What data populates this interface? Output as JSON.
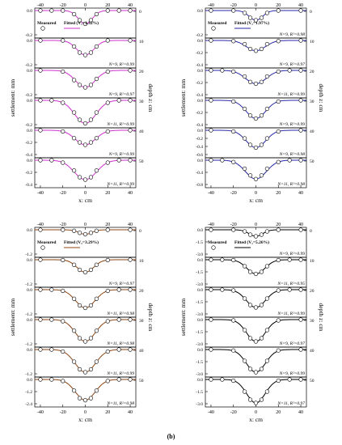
{
  "figure": {
    "caption": "(b)",
    "legend_measured": "Measured",
    "legend_fitted": "Fitted",
    "ylabel_left": "settlement: mm",
    "ylabel_right": "depth z: cm",
    "xlabel": "x: cm"
  },
  "chart_data": [
    {
      "type": "line",
      "id": "top-left",
      "color": "#cc33cc",
      "fit_label": "(V₁=1.32%)",
      "xlim": [
        -45,
        45
      ],
      "xticks": [
        -40,
        -20,
        0,
        20,
        40
      ],
      "xlabel": "x: cm",
      "ylabel": "settlement: mm",
      "depth_label": "depth z: cm",
      "panels": [
        {
          "depth": "0",
          "ylim": [
            -0.2,
            0.0
          ],
          "yticks": [
            "0.0",
            "-0.2"
          ],
          "stats": "",
          "x": [
            -40,
            -30,
            -20,
            -10,
            -5,
            0,
            5,
            10,
            20,
            30,
            40
          ],
          "y": [
            0,
            0,
            0,
            -0.03,
            -0.08,
            -0.11,
            -0.08,
            -0.03,
            0,
            0,
            0
          ]
        },
        {
          "depth": "10",
          "ylim": [
            -0.2,
            0.0
          ],
          "yticks": [
            "0.0",
            "-0.2"
          ],
          "stats": "N=9, R²=0.99",
          "x": [
            -40,
            -20,
            -10,
            -5,
            0,
            5,
            10,
            20,
            40
          ],
          "y": [
            0,
            0,
            -0.05,
            -0.1,
            -0.12,
            -0.1,
            -0.05,
            0,
            0
          ]
        },
        {
          "depth": "20",
          "ylim": [
            -0.2,
            0.0
          ],
          "yticks": [
            "0.0",
            "-0.2"
          ],
          "stats": "N=9, R²=0.97",
          "x": [
            -40,
            -20,
            -10,
            -5,
            0,
            5,
            10,
            20,
            40
          ],
          "y": [
            0,
            -0.01,
            -0.08,
            -0.12,
            -0.14,
            -0.12,
            -0.07,
            -0.01,
            0
          ]
        },
        {
          "depth": "30",
          "ylim": [
            -0.2,
            0.0
          ],
          "yticks": [
            "0.0",
            "-0.2"
          ],
          "stats": "N=11, R²=0.99",
          "x": [
            -40,
            -30,
            -20,
            -10,
            -5,
            0,
            5,
            10,
            20,
            30,
            40
          ],
          "y": [
            0,
            0,
            -0.02,
            -0.1,
            -0.16,
            -0.19,
            -0.16,
            -0.1,
            -0.02,
            0,
            0
          ]
        },
        {
          "depth": "40",
          "ylim": [
            -0.4,
            0.0
          ],
          "yticks": [
            "0.0",
            "-0.2",
            "-0.4"
          ],
          "stats": "N=9, R²=0.99",
          "x": [
            -40,
            -20,
            -10,
            -5,
            0,
            5,
            10,
            20,
            40
          ],
          "y": [
            0,
            -0.02,
            -0.13,
            -0.2,
            -0.24,
            -0.2,
            -0.13,
            -0.02,
            0
          ]
        },
        {
          "depth": "50",
          "ylim": [
            -0.4,
            0.0
          ],
          "yticks": [
            "0.0",
            "-0.2",
            "-0.4"
          ],
          "stats": "N=11, R²=0.99",
          "x": [
            -40,
            -30,
            -20,
            -10,
            -5,
            0,
            5,
            10,
            20,
            30,
            40
          ],
          "y": [
            0,
            0,
            -0.04,
            -0.17,
            -0.28,
            -0.32,
            -0.28,
            -0.17,
            -0.04,
            0,
            0
          ]
        }
      ]
    },
    {
      "type": "line",
      "id": "top-right",
      "color": "#2a2aa8",
      "fit_label": "(V₁=1.97%)",
      "xlim": [
        -45,
        45
      ],
      "xticks": [
        -40,
        -20,
        0,
        20,
        40
      ],
      "xlabel": "x: cm",
      "ylabel": "settlement: mm",
      "depth_label": "depth z: cm",
      "panels": [
        {
          "depth": "0",
          "ylim": [
            -0.2,
            0.0
          ],
          "yticks": [
            "0.0",
            "-0.2"
          ],
          "stats": "N=9, R²=0.98",
          "x": [
            -40,
            -20,
            -10,
            -5,
            0,
            5,
            10,
            20,
            40
          ],
          "y": [
            0,
            0,
            -0.02,
            -0.06,
            -0.08,
            -0.06,
            -0.02,
            0,
            0
          ]
        },
        {
          "depth": "10",
          "ylim": [
            -0.4,
            0.0
          ],
          "yticks": [
            "0.0",
            "-0.2",
            "-0.4"
          ],
          "stats": "N=9, R²=0.97",
          "x": [
            -40,
            -20,
            -10,
            -5,
            0,
            5,
            10,
            20,
            40
          ],
          "y": [
            0,
            -0.01,
            -0.06,
            -0.14,
            -0.17,
            -0.14,
            -0.06,
            -0.01,
            0
          ]
        },
        {
          "depth": "20",
          "ylim": [
            -0.4,
            0.0
          ],
          "yticks": [
            "0.0",
            "-0.2",
            "-0.4"
          ],
          "stats": "N=11, R²=0.99",
          "x": [
            -40,
            -30,
            -20,
            -10,
            -5,
            0,
            5,
            10,
            20,
            30,
            40
          ],
          "y": [
            0,
            0,
            -0.02,
            -0.1,
            -0.19,
            -0.22,
            -0.19,
            -0.1,
            -0.02,
            0,
            0
          ]
        },
        {
          "depth": "30",
          "ylim": [
            -0.4,
            0.0
          ],
          "yticks": [
            "0.0",
            "-0.2",
            "-0.4"
          ],
          "stats": "N=9, R²=0.99",
          "x": [
            -40,
            -20,
            -10,
            -5,
            0,
            5,
            10,
            20,
            40
          ],
          "y": [
            0,
            -0.02,
            -0.14,
            -0.25,
            -0.3,
            -0.25,
            -0.14,
            -0.02,
            0
          ]
        },
        {
          "depth": "40",
          "ylim": [
            -0.6,
            0.0
          ],
          "yticks": [
            "0.0",
            "-0.2",
            "-0.4",
            "-0.6"
          ],
          "stats": "N=9, R²=0.98",
          "x": [
            -40,
            -20,
            -10,
            -5,
            0,
            5,
            10,
            20,
            40
          ],
          "y": [
            0,
            -0.03,
            -0.2,
            -0.36,
            -0.43,
            -0.36,
            -0.2,
            -0.03,
            0
          ]
        },
        {
          "depth": "50",
          "ylim": [
            -0.8,
            0.0
          ],
          "yticks": [
            "0.0",
            "-0.4",
            "-0.8"
          ],
          "stats": "N=11, R²=0.98",
          "x": [
            -40,
            -30,
            -20,
            -10,
            -5,
            0,
            5,
            10,
            20,
            30,
            40
          ],
          "y": [
            0,
            0,
            -0.06,
            -0.28,
            -0.5,
            -0.62,
            -0.5,
            -0.28,
            -0.06,
            0,
            0
          ]
        }
      ]
    },
    {
      "type": "line",
      "id": "bottom-left",
      "color": "#8b4513",
      "fit_label": "(V₁=3.29%)",
      "xlim": [
        -45,
        45
      ],
      "xticks": [
        -40,
        -20,
        0,
        20,
        40
      ],
      "xlabel": "x: cm",
      "ylabel": "settlement: mm",
      "depth_label": "depth z: cm",
      "panels": [
        {
          "depth": "0",
          "ylim": [
            -1.2,
            0.0
          ],
          "yticks": [
            "0.0",
            "-1.2"
          ],
          "stats": "",
          "x": [
            -40,
            -20,
            -10,
            -5,
            0,
            5,
            10,
            20,
            40
          ],
          "y": [
            0,
            0,
            -0.05,
            -0.15,
            -0.22,
            -0.15,
            -0.05,
            0,
            0
          ]
        },
        {
          "depth": "10",
          "ylim": [
            -1.2,
            0.0
          ],
          "yticks": [
            "0.0",
            "-1.2"
          ],
          "stats": "N=9, R²=0.97",
          "x": [
            -40,
            -20,
            -10,
            -5,
            0,
            5,
            10,
            20,
            40
          ],
          "y": [
            0,
            -0.02,
            -0.25,
            -0.5,
            -0.62,
            -0.5,
            -0.25,
            -0.02,
            0
          ]
        },
        {
          "depth": "20",
          "ylim": [
            -1.2,
            0.0
          ],
          "yticks": [
            "0.0",
            "-1.2"
          ],
          "stats": "N=11, R²=0.98",
          "x": [
            -40,
            -30,
            -20,
            -10,
            -5,
            0,
            5,
            10,
            20,
            30,
            40
          ],
          "y": [
            0,
            0,
            -0.06,
            -0.45,
            -0.78,
            -0.9,
            -0.78,
            -0.45,
            -0.06,
            0,
            0
          ]
        },
        {
          "depth": "30",
          "ylim": [
            -1.2,
            0.0
          ],
          "yticks": [
            "0.0",
            "-1.2"
          ],
          "stats": "N=11, R²=0.98",
          "x": [
            -40,
            -30,
            -20,
            -10,
            -5,
            0,
            5,
            10,
            20,
            30,
            40
          ],
          "y": [
            0,
            0,
            -0.08,
            -0.55,
            -0.92,
            -1.08,
            -0.92,
            -0.55,
            -0.08,
            0,
            0
          ]
        },
        {
          "depth": "40",
          "ylim": [
            -1.2,
            0.0
          ],
          "yticks": [
            "0.0",
            "-1.2"
          ],
          "stats": "N=11, R²=0.99",
          "x": [
            -40,
            -30,
            -20,
            -10,
            -5,
            0,
            5,
            10,
            20,
            30,
            40
          ],
          "y": [
            0,
            0,
            -0.1,
            -0.6,
            -0.98,
            -1.12,
            -0.98,
            -0.6,
            -0.1,
            0,
            0
          ]
        },
        {
          "depth": "50",
          "ylim": [
            -2.4,
            0.0
          ],
          "yticks": [
            "0.0",
            "-1.2",
            "-2.4"
          ],
          "stats": "N=11, R²=0.98",
          "x": [
            -40,
            -30,
            -20,
            -10,
            -5,
            0,
            5,
            10,
            20,
            30,
            40
          ],
          "y": [
            0,
            0,
            -0.15,
            -1.1,
            -1.85,
            -2.05,
            -1.85,
            -1.1,
            -0.15,
            0,
            0
          ]
        }
      ]
    },
    {
      "type": "line",
      "id": "bottom-right",
      "color": "#000000",
      "fit_label": "(V₁=5.26%)",
      "xlim": [
        -45,
        45
      ],
      "xticks": [
        -40,
        -20,
        0,
        20,
        40
      ],
      "xlabel": "x: cm",
      "ylabel": "settlement: mm",
      "depth_label": "depth z: cm",
      "panels": [
        {
          "depth": "0",
          "ylim": [
            -3.0,
            0.0
          ],
          "yticks": [
            "0.0",
            "-1.5",
            "-3.0"
          ],
          "stats": "N=9, R²=0.99",
          "x": [
            -40,
            -20,
            -10,
            -5,
            0,
            5,
            10,
            20,
            40
          ],
          "y": [
            0,
            0,
            -0.2,
            -0.6,
            -0.8,
            -0.6,
            -0.2,
            0,
            0
          ]
        },
        {
          "depth": "10",
          "ylim": [
            -3.0,
            0.0
          ],
          "yticks": [
            "0.0",
            "-1.5",
            "-3.0"
          ],
          "stats": "N=11, R²=0.95",
          "x": [
            -40,
            -30,
            -20,
            -10,
            -5,
            0,
            5,
            10,
            20,
            30,
            40
          ],
          "y": [
            0,
            0,
            -0.05,
            -0.8,
            -1.5,
            -1.75,
            -1.5,
            -0.8,
            -0.05,
            0,
            0
          ]
        },
        {
          "depth": "20",
          "ylim": [
            -3.0,
            0.0
          ],
          "yticks": [
            "0.0",
            "-1.5",
            "-3.0"
          ],
          "stats": "N=11, R²=0.99",
          "x": [
            -40,
            -30,
            -20,
            -10,
            -5,
            0,
            5,
            10,
            20,
            30,
            40
          ],
          "y": [
            0,
            0,
            -0.1,
            -1.1,
            -1.9,
            -2.2,
            -1.9,
            -1.1,
            -0.1,
            0,
            0
          ]
        },
        {
          "depth": "30",
          "ylim": [
            -3.0,
            0.0
          ],
          "yticks": [
            "0.0",
            "-1.5",
            "-3.0"
          ],
          "stats": "N=9, R²=0.97",
          "x": [
            -40,
            -20,
            -10,
            -5,
            0,
            5,
            10,
            20,
            40
          ],
          "y": [
            0,
            -0.1,
            -1.3,
            -2.3,
            -2.7,
            -2.3,
            -1.3,
            -0.1,
            0
          ]
        },
        {
          "depth": "40",
          "ylim": [
            -3.0,
            0.0
          ],
          "yticks": [
            "0.0",
            "-1.5",
            "-3.0"
          ],
          "stats": "N=9, R²=0.99",
          "x": [
            -40,
            -20,
            -10,
            -5,
            0,
            5,
            10,
            20,
            40
          ],
          "y": [
            0,
            -0.12,
            -1.4,
            -2.4,
            -2.8,
            -2.4,
            -1.4,
            -0.12,
            0
          ]
        },
        {
          "depth": "50",
          "ylim": [
            -3.0,
            0.0
          ],
          "yticks": [
            "0.0",
            "-1.5",
            "-3.0"
          ],
          "stats": "N=11, R²=0.97",
          "x": [
            -40,
            -30,
            -20,
            -10,
            -5,
            0,
            5,
            10,
            20,
            30,
            40
          ],
          "y": [
            0,
            0,
            -0.15,
            -1.5,
            -2.5,
            -2.9,
            -2.5,
            -1.5,
            -0.15,
            0,
            0
          ]
        }
      ]
    }
  ]
}
